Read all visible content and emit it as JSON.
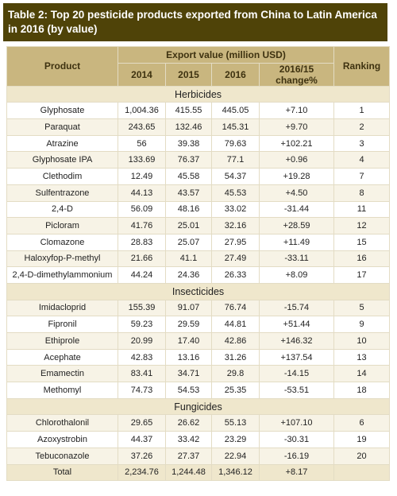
{
  "title": "Table 2: Top 20 pesticide products exported from China to Latin America in 2016 (by value)",
  "header": {
    "product": "Product",
    "export_value": "Export value (million USD)",
    "years": [
      "2014",
      "2015",
      "2016"
    ],
    "change": "2016/15 change%",
    "ranking": "Ranking"
  },
  "sections": [
    {
      "name": "Herbicides",
      "rows": [
        [
          "Glyphosate",
          "1,004.36",
          "415.55",
          "445.05",
          "+7.10",
          "1"
        ],
        [
          "Paraquat",
          "243.65",
          "132.46",
          "145.31",
          "+9.70",
          "2"
        ],
        [
          "Atrazine",
          "56",
          "39.38",
          "79.63",
          "+102.21",
          "3"
        ],
        [
          "Glyphosate IPA",
          "133.69",
          "76.37",
          "77.1",
          "+0.96",
          "4"
        ],
        [
          "Clethodim",
          "12.49",
          "45.58",
          "54.37",
          "+19.28",
          "7"
        ],
        [
          "Sulfentrazone",
          "44.13",
          "43.57",
          "45.53",
          "+4.50",
          "8"
        ],
        [
          "2,4-D",
          "56.09",
          "48.16",
          "33.02",
          "-31.44",
          "11"
        ],
        [
          "Picloram",
          "41.76",
          "25.01",
          "32.16",
          "+28.59",
          "12"
        ],
        [
          "Clomazone",
          "28.83",
          "25.07",
          "27.95",
          "+11.49",
          "15"
        ],
        [
          "Haloxyfop-P-methyl",
          "21.66",
          "41.1",
          "27.49",
          "-33.11",
          "16"
        ],
        [
          "2,4-D-dimethylammonium",
          "44.24",
          "24.36",
          "26.33",
          "+8.09",
          "17"
        ]
      ]
    },
    {
      "name": "Insecticides",
      "rows": [
        [
          "Imidacloprid",
          "155.39",
          "91.07",
          "76.74",
          "-15.74",
          "5"
        ],
        [
          "Fipronil",
          "59.23",
          "29.59",
          "44.81",
          "+51.44",
          "9"
        ],
        [
          "Ethiprole",
          "20.99",
          "17.40",
          "42.86",
          "+146.32",
          "10"
        ],
        [
          "Acephate",
          "42.83",
          "13.16",
          "31.26",
          "+137.54",
          "13"
        ],
        [
          "Emamectin",
          "83.41",
          "34.71",
          "29.8",
          "-14.15",
          "14"
        ],
        [
          "Methomyl",
          "74.73",
          "54.53",
          "25.35",
          "-53.51",
          "18"
        ]
      ]
    },
    {
      "name": "Fungicides",
      "rows": [
        [
          "Chlorothalonil",
          "29.65",
          "26.62",
          "55.13",
          "+107.10",
          "6"
        ],
        [
          "Azoxystrobin",
          "44.37",
          "33.42",
          "23.29",
          "-30.31",
          "19"
        ],
        [
          "Tebuconazole",
          "37.26",
          "27.37",
          "22.94",
          "-16.19",
          "20"
        ]
      ]
    }
  ],
  "total": [
    "Total",
    "2,234.76",
    "1,244.48",
    "1,346.12",
    "+8.17"
  ]
}
